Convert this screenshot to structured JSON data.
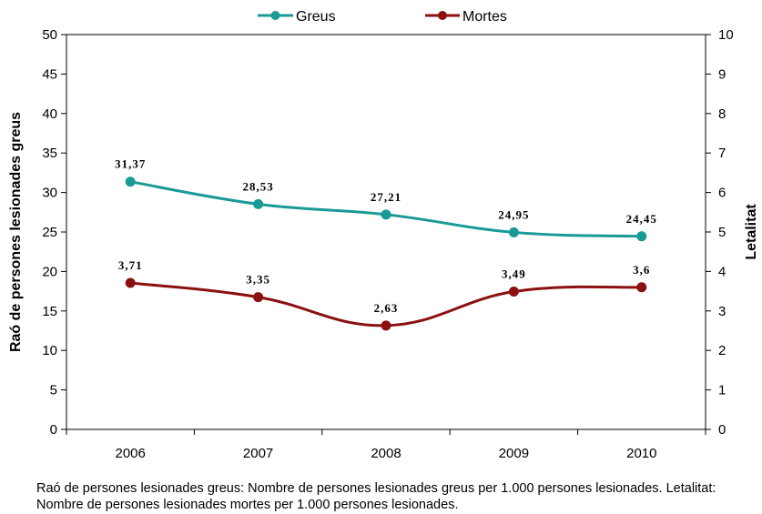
{
  "chart_data": {
    "type": "line",
    "categories": [
      "2006",
      "2007",
      "2008",
      "2009",
      "2010"
    ],
    "series": [
      {
        "name": "Greus",
        "axis": "left",
        "color": "#1a9a96",
        "values": [
          31.37,
          28.53,
          27.21,
          24.95,
          24.45
        ],
        "labels": [
          "31,37",
          "28,53",
          "27,21",
          "24,95",
          "24,45"
        ]
      },
      {
        "name": "Mortes",
        "axis": "right",
        "color": "#8b1010",
        "values": [
          3.71,
          3.35,
          2.63,
          3.49,
          3.6
        ],
        "labels": [
          "3,71",
          "3,35",
          "2,63",
          "3,49",
          "3,6"
        ]
      }
    ],
    "ylabel": "Raó de persones lesionades greus",
    "y2label": "Letalitat",
    "ylim": [
      0,
      50
    ],
    "y2lim": [
      0,
      10
    ],
    "yticks": [
      "0",
      "5",
      "10",
      "15",
      "20",
      "25",
      "30",
      "35",
      "40",
      "45",
      "50"
    ],
    "y2ticks": [
      "0",
      "1",
      "2",
      "3",
      "4",
      "5",
      "6",
      "7",
      "8",
      "9",
      "10"
    ],
    "legend_position": "top-center",
    "grid": false
  },
  "footnote": "Raó de persones lesionades greus: Nombre de persones lesionades greus per 1.000 persones lesionades. Letalitat: Nombre de persones lesionades mortes per 1.000 persones lesionades."
}
